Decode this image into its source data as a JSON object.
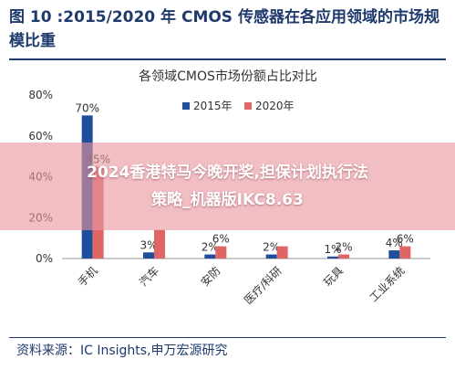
{
  "figure": {
    "title": "图 10 :2015/2020 年 CMOS 传感器在各应用领域的市场规模比重",
    "source": "资料来源：IC Insights,申万宏源研究"
  },
  "overlay": {
    "text": "2024香港特马今晚开奖,担保计划执行法策略_机器版IKC8.63"
  },
  "chart_data": {
    "type": "bar",
    "title": "各领域CMOS市场份额占比对比",
    "categories": [
      "手机",
      "汽车",
      "安防",
      "医疗/科研",
      "玩具",
      "工业系统"
    ],
    "series": [
      {
        "name": "2015年",
        "values": [
          70,
          3,
          2,
          2,
          1,
          4
        ],
        "labels": [
          "70%",
          "3%",
          "2%",
          "2%",
          "1%",
          "4%"
        ],
        "color": "#1f4e9a"
      },
      {
        "name": "2020年",
        "values": [
          45,
          14,
          6,
          6,
          2,
          6
        ],
        "labels": [
          "45%",
          "",
          "6%",
          "",
          "2%",
          "6%"
        ],
        "color": "#e06666"
      }
    ],
    "yticks": [
      "0%",
      "20%",
      "40%",
      "60%",
      "80%"
    ],
    "ylim": [
      0,
      80
    ],
    "legend": "top",
    "grid": false
  }
}
